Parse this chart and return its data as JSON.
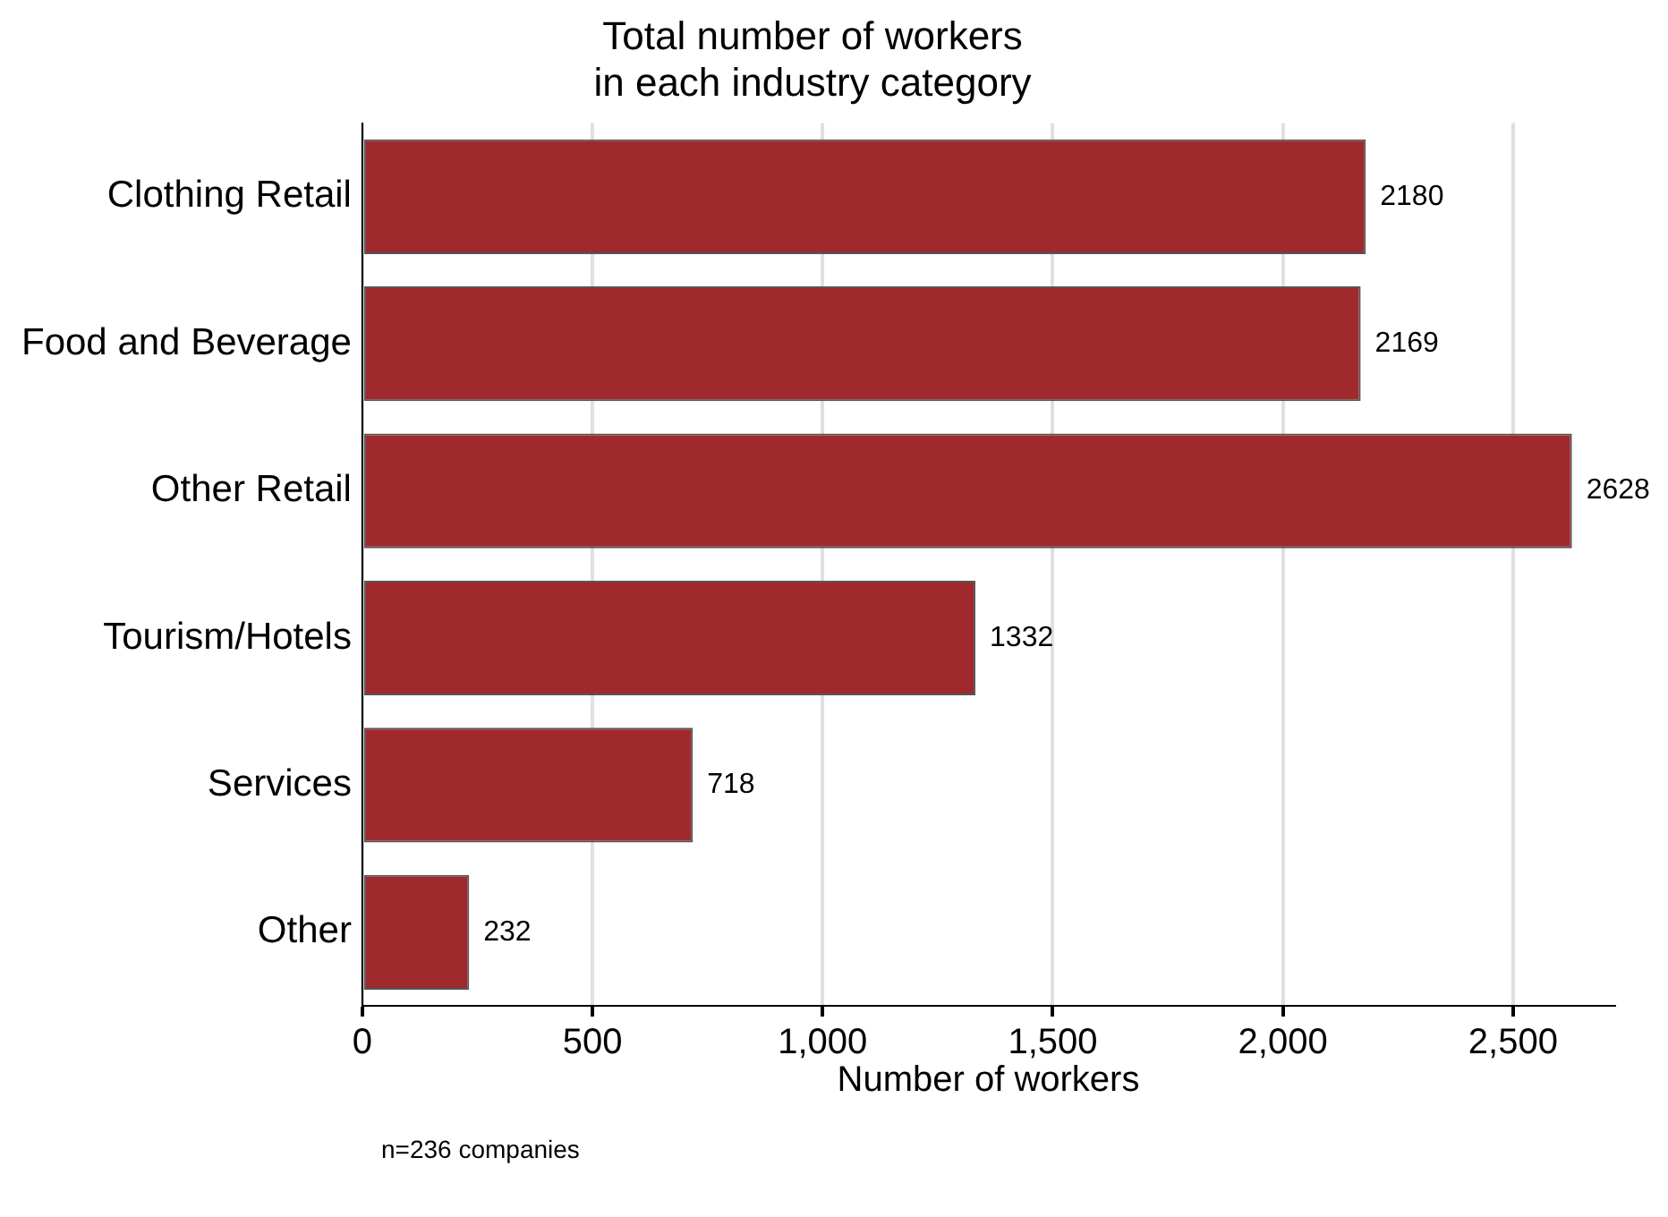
{
  "chart_data": {
    "type": "bar",
    "orientation": "horizontal",
    "title": "Total number of workers\nin each industry category",
    "xlabel": "Number of workers",
    "categories": [
      "Clothing Retail",
      "Food and Beverage",
      "Other Retail",
      "Tourism/Hotels",
      "Services",
      "Other"
    ],
    "values": [
      2180,
      2169,
      2628,
      1332,
      718,
      232
    ],
    "color": "#a0292e",
    "xlim": [
      0,
      2720
    ],
    "xticks": [
      0,
      500,
      {
        "value": 1000,
        "label": "1,000"
      },
      {
        "value": 1500,
        "label": "1,500"
      },
      {
        "value": 2000,
        "label": "2,000"
      },
      {
        "value": 2500,
        "label": "2,500"
      }
    ],
    "grid": "x",
    "legend": false,
    "data_labels": true,
    "annotations": [
      "n=236 companies"
    ]
  }
}
